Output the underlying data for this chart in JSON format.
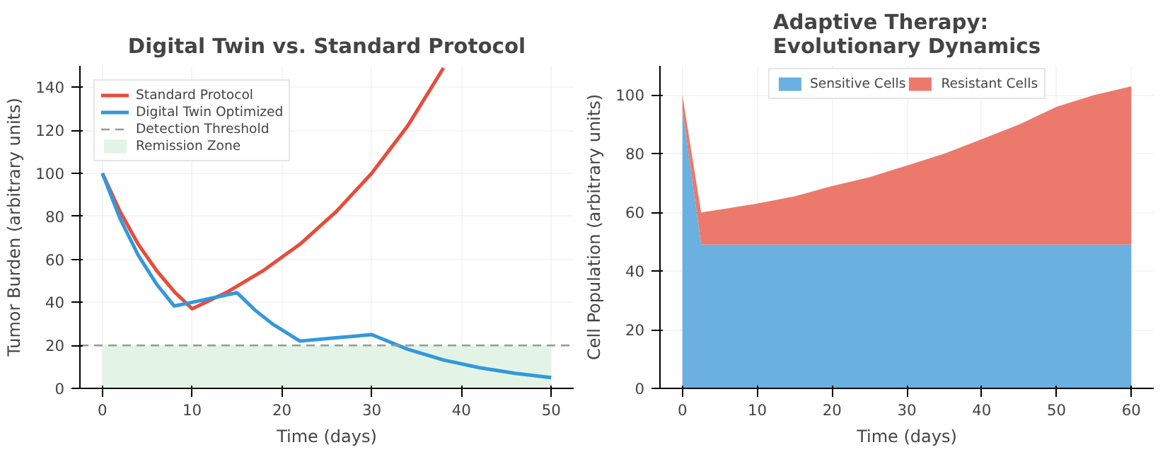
{
  "chart_data": [
    {
      "type": "line",
      "title": "Digital Twin vs. Standard Protocol",
      "xlabel": "Time (days)",
      "ylabel": "Tumor Burden (arbitrary units)",
      "xlim": [
        -2.5,
        52.5
      ],
      "ylim": [
        0,
        150
      ],
      "xticks": [
        0,
        10,
        20,
        30,
        40,
        50
      ],
      "yticks": [
        0,
        20,
        40,
        60,
        80,
        100,
        120,
        140
      ],
      "grid": true,
      "legend": "top left",
      "line_style": "solid",
      "series": [
        {
          "name": "Standard Protocol",
          "color": "#e74c3c",
          "x": [
            0,
            2,
            4,
            6,
            8,
            10,
            14,
            18,
            22,
            26,
            30,
            34,
            38
          ],
          "values": [
            100,
            82,
            67,
            55,
            45,
            37,
            45,
            55,
            67,
            82,
            100,
            122,
            149
          ]
        },
        {
          "name": "Digital Twin Optimized",
          "color": "#3498db",
          "x": [
            0,
            2,
            4,
            6,
            8,
            10,
            15,
            17,
            19,
            22,
            26,
            30,
            34,
            38,
            42,
            46,
            50
          ],
          "values": [
            100,
            78.7,
            61.9,
            48.7,
            38.3,
            40,
            44.5,
            36.4,
            29.8,
            22,
            23.5,
            25,
            18.2,
            13.2,
            9.6,
            7,
            5
          ]
        }
      ],
      "ref_lines": [
        {
          "axis": "y",
          "value": 20,
          "label": "Detection Threshold",
          "color": "#999999",
          "line_style": "dashed"
        }
      ],
      "bands": [
        {
          "axis": "y",
          "from": 0,
          "to": 20,
          "label": "Remission Zone",
          "color": "#e3f4e6"
        }
      ]
    },
    {
      "type": "area",
      "stacked": true,
      "title": "Adaptive Therapy:\nEvolutionary Dynamics",
      "xlabel": "Time (days)",
      "ylabel": "Cell Population (arbitrary units)",
      "xlim": [
        -3,
        63
      ],
      "ylim": [
        0,
        110
      ],
      "xticks": [
        0,
        10,
        20,
        30,
        40,
        50,
        60
      ],
      "yticks": [
        0,
        20,
        40,
        60,
        80,
        100
      ],
      "grid": true,
      "legend": "top",
      "x": [
        0,
        2.5,
        5,
        10,
        15,
        20,
        25,
        30,
        35,
        40,
        45,
        50,
        55,
        60
      ],
      "series": [
        {
          "name": "Sensitive Cells",
          "color": "#6ab0e0",
          "values": [
            95,
            49,
            49,
            49,
            49,
            49,
            49,
            49,
            49,
            49,
            49,
            49,
            49,
            49
          ]
        },
        {
          "name": "Resistant Cells",
          "color": "#ec7a6c",
          "values": [
            5,
            11,
            12,
            14,
            16.5,
            20,
            23,
            27,
            31,
            36,
            41,
            47,
            51,
            54
          ]
        }
      ]
    }
  ]
}
